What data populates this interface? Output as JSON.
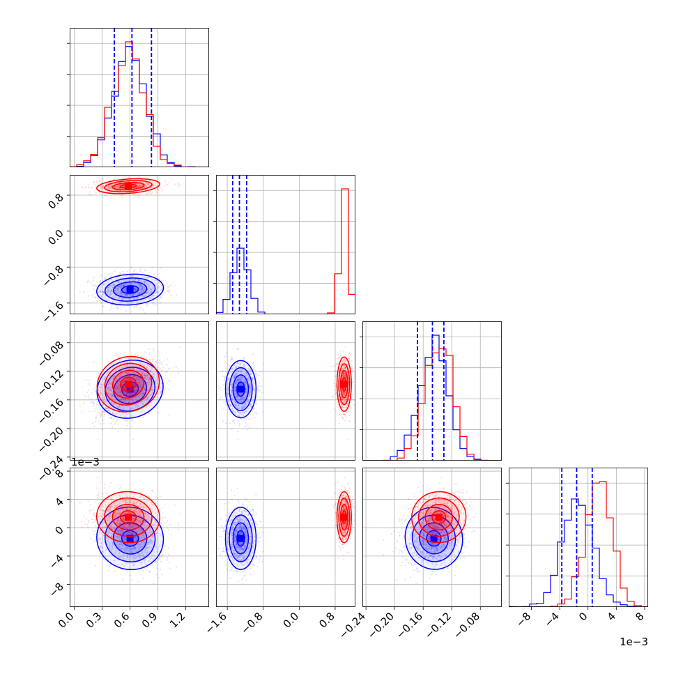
{
  "chart_data": {
    "type": "corner",
    "series": [
      {
        "name": "",
        "color": "#0000ff",
        "means": [
          0.6,
          -1.3,
          -0.145,
          -0.0015
        ],
        "stds": [
          0.18,
          0.17,
          0.02,
          0.0022
        ],
        "quantile_lines": [
          [
            0.43,
            0.62,
            0.83
          ],
          [
            -1.48,
            -1.33,
            -1.17
          ],
          [
            -0.168,
            -0.147,
            -0.131
          ],
          [
            -0.0037,
            -0.0016,
            0.0006
          ]
        ]
      },
      {
        "name": "",
        "color": "#ff0000",
        "means": [
          0.58,
          1.0,
          -0.138,
          0.0015
        ],
        "stds": [
          0.17,
          0.08,
          0.019,
          0.0018
        ]
      }
    ],
    "panels": [
      {
        "var": 0,
        "xlim": [
          -0.05,
          1.45
        ],
        "xticks": [
          "0.0",
          "0.3",
          "0.6",
          "0.9",
          "1.2"
        ],
        "xtick_values": [
          0.0,
          0.3,
          0.6,
          0.9,
          1.2
        ]
      },
      {
        "var": 1,
        "xlim": [
          -1.85,
          1.25
        ],
        "xticks": [
          "−1.6",
          "−0.8",
          "0.0",
          "0.8"
        ],
        "xtick_values": [
          -1.6,
          -0.8,
          0.0,
          0.8
        ]
      },
      {
        "var": 2,
        "xlim": [
          -0.245,
          -0.05
        ],
        "xticks": [
          "−0.24",
          "−0.20",
          "−0.16",
          "−0.12",
          "−0.08"
        ],
        "xtick_values": [
          -0.24,
          -0.2,
          -0.16,
          -0.12,
          -0.08
        ]
      },
      {
        "var": 3,
        "xlim": [
          -0.0112,
          0.0085
        ],
        "xticks": [
          "−8",
          "−4",
          "0",
          "4",
          "8"
        ],
        "xtick_values": [
          -0.008,
          -0.004,
          0.0,
          0.004,
          0.008
        ]
      }
    ],
    "yticks": {
      "1": {
        "labels": [
          "0.8",
          "0.0",
          "−0.8",
          "−1.6"
        ],
        "values": [
          0.8,
          0.0,
          -0.8,
          -1.6
        ]
      },
      "2": {
        "labels": [
          "−0.08",
          "−0.12",
          "−0.16",
          "−0.20",
          "−0.24"
        ],
        "values": [
          -0.08,
          -0.12,
          -0.16,
          -0.2,
          -0.24
        ]
      },
      "3": {
        "labels": [
          "8",
          "4",
          "0",
          "−4",
          "−8"
        ],
        "values": [
          0.008,
          0.004,
          0.0,
          -0.004,
          -0.008
        ]
      }
    },
    "offset_text": "1e−3",
    "grid": true,
    "layout": "lower-triangle"
  }
}
